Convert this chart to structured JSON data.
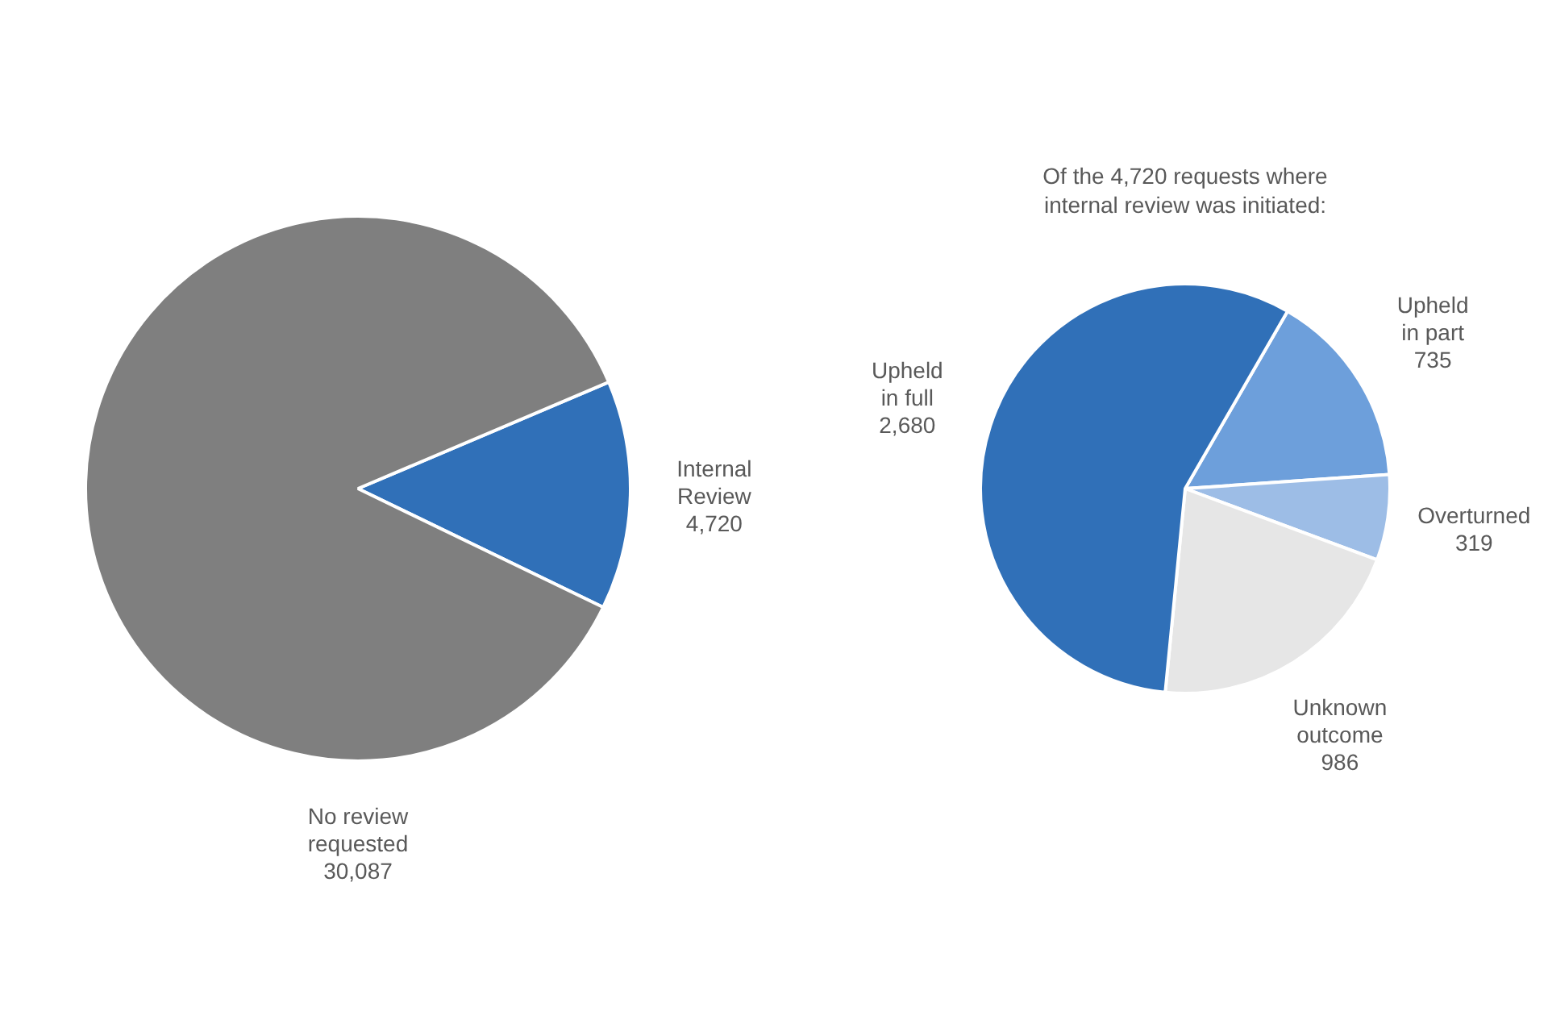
{
  "chart_data": [
    {
      "type": "pie",
      "categories": [
        "Internal Review",
        "No review requested"
      ],
      "values": [
        4720,
        30087
      ],
      "value_labels": [
        "4,720",
        "30,087"
      ],
      "colors": [
        "#3070b8",
        "#7f7f7f"
      ],
      "legend": false
    },
    {
      "type": "pie",
      "title": "Of the 4,720 requests where internal review was initiated:",
      "categories": [
        "Upheld in part",
        "Overturned",
        "Unknown outcome",
        "Upheld in full"
      ],
      "values": [
        735,
        319,
        986,
        2680
      ],
      "value_labels": [
        "735",
        "319",
        "986",
        "2,680"
      ],
      "colors": [
        "#6d9fdb",
        "#9dbde6",
        "#e6e6e6",
        "#3070b8"
      ],
      "legend": false
    }
  ]
}
